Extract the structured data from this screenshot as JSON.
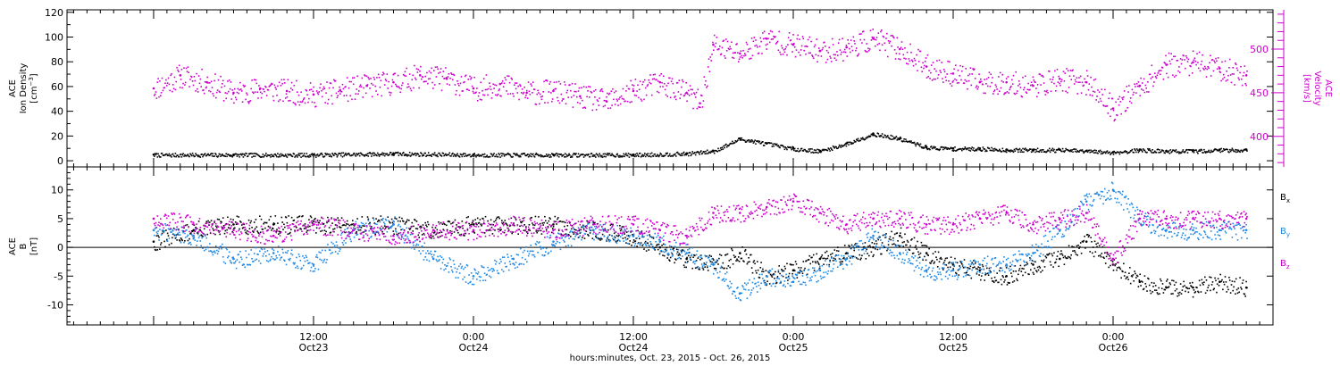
{
  "chart_data": [
    {
      "type": "scatter",
      "panel": "top",
      "left_axis_label": [
        "ACE",
        "Ion Density"
      ],
      "left_axis_unit": "[cm^-3]",
      "right_axis_label": [
        "ACE",
        "Velocity"
      ],
      "right_axis_unit": "[km/s]",
      "left_ylim": [
        -5,
        122
      ],
      "left_yticks": [
        0,
        20,
        40,
        60,
        80,
        100,
        120
      ],
      "right_ylim": [
        365,
        545
      ],
      "right_yticks": [
        400,
        450,
        500
      ],
      "right_axis_color": "#cc00cc",
      "series": [
        {
          "axis": "left",
          "color": "#000000",
          "x_hours": [
            0,
            6,
            12,
            18,
            24,
            30,
            36,
            40,
            42,
            44,
            46,
            48,
            50,
            52,
            54,
            56,
            58,
            60,
            62,
            64,
            66,
            68,
            70,
            72,
            74,
            76,
            78,
            80,
            82
          ],
          "values": [
            5,
            5,
            5,
            6,
            5,
            5,
            5,
            6,
            8,
            18,
            14,
            10,
            8,
            14,
            22,
            18,
            11,
            10,
            10,
            9,
            9,
            9,
            8,
            7,
            9,
            8,
            8,
            9,
            9
          ]
        },
        {
          "axis": "right",
          "color": "#cc00cc",
          "x_hours": [
            0,
            2,
            4,
            6,
            8,
            10,
            12,
            14,
            16,
            18,
            20,
            22,
            24,
            26,
            28,
            30,
            32,
            34,
            36,
            38,
            40,
            41,
            42,
            44,
            46,
            48,
            50,
            52,
            54,
            56,
            58,
            60,
            62,
            64,
            66,
            68,
            70,
            72,
            74,
            76,
            78,
            80,
            82
          ],
          "values": [
            455,
            470,
            462,
            450,
            455,
            452,
            448,
            453,
            458,
            462,
            470,
            466,
            455,
            460,
            450,
            452,
            446,
            440,
            452,
            462,
            450,
            438,
            505,
            495,
            512,
            505,
            498,
            502,
            512,
            500,
            480,
            472,
            462,
            462,
            458,
            466,
            462,
            432,
            458,
            482,
            485,
            478,
            470
          ]
        }
      ]
    },
    {
      "type": "scatter",
      "panel": "bottom",
      "left_axis_label": [
        "ACE",
        "B"
      ],
      "left_axis_unit": "[nT]",
      "ylim": [
        -13.5,
        14
      ],
      "yticks": [
        -10,
        -5,
        0,
        5,
        10
      ],
      "zero_line": true,
      "legend_position": "right",
      "series": [
        {
          "name": "Bx",
          "legend_base": "B",
          "legend_sub": "x",
          "color": "#000000",
          "x_hours": [
            0,
            3,
            6,
            9,
            12,
            15,
            18,
            21,
            24,
            27,
            30,
            33,
            36,
            38,
            40,
            42,
            44,
            46,
            48,
            50,
            52,
            54,
            56,
            58,
            60,
            62,
            64,
            66,
            68,
            70,
            72,
            74,
            76,
            78,
            80,
            82
          ],
          "values": [
            1,
            3,
            4,
            4,
            4,
            4,
            4,
            3,
            4,
            4,
            4,
            3,
            2,
            0,
            -2,
            -3,
            -1,
            -5,
            -4,
            -2,
            -1,
            0,
            2,
            -1,
            -3,
            -4,
            -5,
            -3,
            -2,
            1,
            -3,
            -6,
            -7,
            -7,
            -6,
            -7
          ]
        },
        {
          "name": "By",
          "legend_base": "B",
          "legend_sub": "y",
          "color": "#1e88e5",
          "x_hours": [
            0,
            3,
            6,
            9,
            12,
            15,
            18,
            21,
            24,
            27,
            30,
            33,
            36,
            38,
            40,
            42,
            44,
            46,
            48,
            50,
            52,
            54,
            56,
            58,
            60,
            62,
            64,
            66,
            68,
            70,
            72,
            74,
            76,
            78,
            80,
            82
          ],
          "values": [
            3,
            2,
            -2,
            -1,
            -3,
            3,
            4,
            -2,
            -5,
            -2,
            1,
            3,
            2,
            1,
            -1,
            -3,
            -8,
            -5,
            -6,
            -4,
            -2,
            2,
            -1,
            -4,
            -4,
            -3,
            -3,
            -1,
            3,
            8,
            10,
            5,
            3,
            3,
            3,
            3
          ]
        },
        {
          "name": "Bz",
          "legend_base": "B",
          "legend_sub": "z",
          "color": "#cc00cc",
          "x_hours": [
            0,
            3,
            6,
            9,
            12,
            15,
            18,
            21,
            24,
            27,
            30,
            33,
            36,
            38,
            40,
            42,
            44,
            46,
            48,
            50,
            52,
            54,
            56,
            58,
            60,
            62,
            64,
            66,
            68,
            70,
            72,
            74,
            76,
            78,
            80,
            82
          ],
          "values": [
            5,
            4,
            3,
            2,
            4,
            3,
            2,
            3,
            3,
            4,
            3,
            4,
            4,
            3,
            2,
            6,
            6,
            7,
            8,
            6,
            4,
            5,
            5,
            4,
            4,
            5,
            6,
            4,
            5,
            6,
            -2,
            5,
            5,
            5,
            5,
            5
          ]
        }
      ]
    }
  ],
  "x_axis": {
    "xlim_hours": [
      -6.5,
      84
    ],
    "ticks": [
      {
        "hour": 12,
        "time": "12:00",
        "date": "Oct23"
      },
      {
        "hour": 24,
        "time": "0:00",
        "date": "Oct24"
      },
      {
        "hour": 36,
        "time": "12:00",
        "date": "Oct24"
      },
      {
        "hour": 48,
        "time": "0:00",
        "date": "Oct25"
      },
      {
        "hour": 60,
        "time": "12:00",
        "date": "Oct25"
      },
      {
        "hour": 72,
        "time": "0:00",
        "date": "Oct26"
      }
    ],
    "minor_every_hours": 1,
    "xlabel": "hours:minutes, Oct. 23, 2015 - Oct. 26, 2015"
  }
}
